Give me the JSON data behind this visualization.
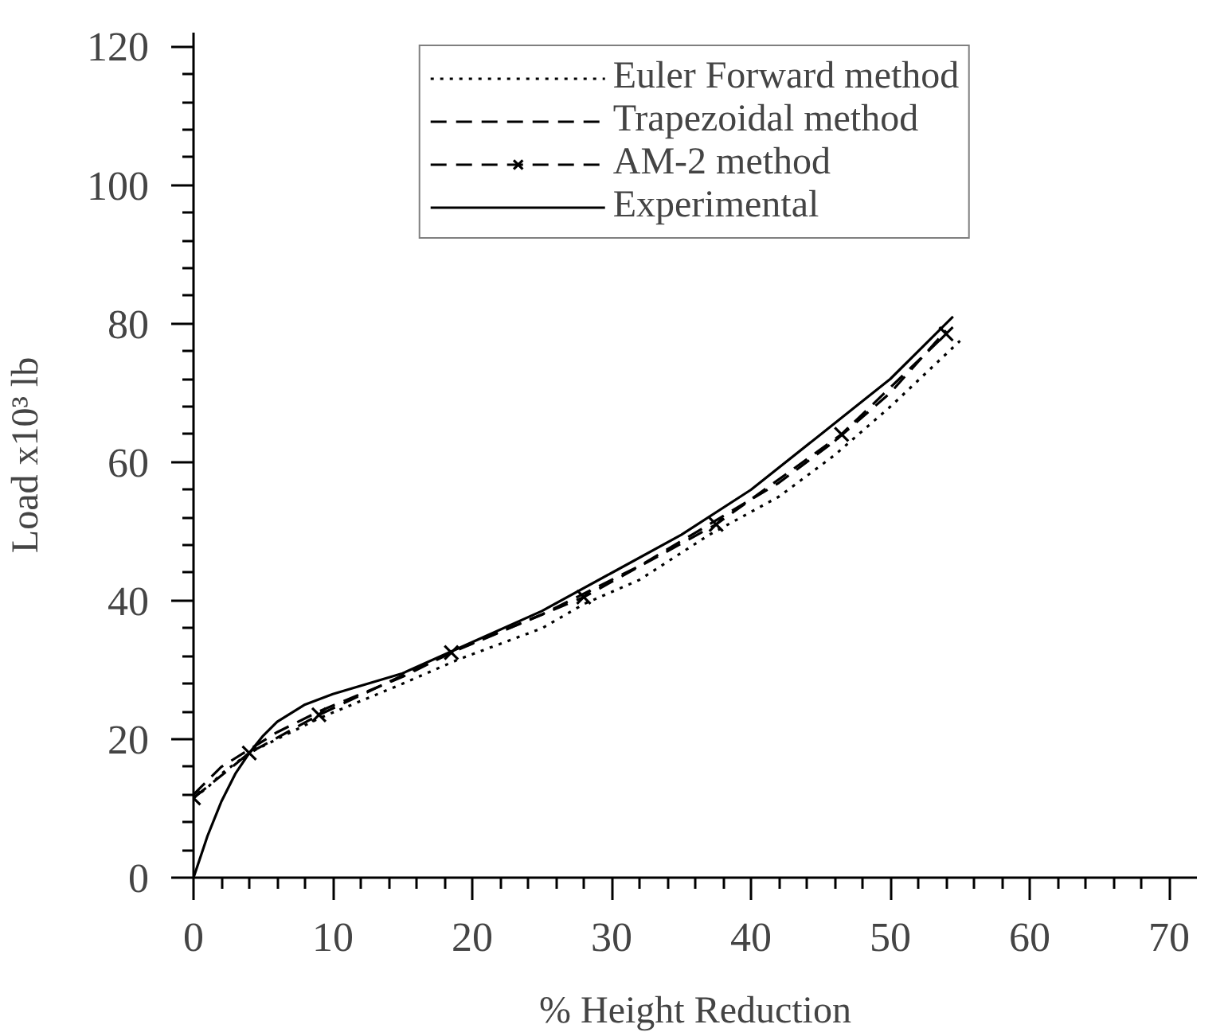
{
  "chart_data": {
    "type": "line",
    "xlabel": "% Height Reduction",
    "ylabel": "Load x10³ lb",
    "xlim": [
      0,
      72
    ],
    "ylim": [
      0,
      122
    ],
    "xticks": [
      0,
      {
        "value": 2,
        "label": null
      },
      {
        "value": 4,
        "label": null
      },
      {
        "value": 6,
        "label": null
      },
      {
        "value": 8,
        "label": null
      },
      10,
      {
        "value": 12,
        "label": null
      },
      {
        "value": 14,
        "label": null
      },
      {
        "value": 16,
        "label": null
      },
      {
        "value": 18,
        "label": null
      },
      20,
      {
        "value": 22,
        "label": null
      },
      {
        "value": 24,
        "label": null
      },
      {
        "value": 26,
        "label": null
      },
      {
        "value": 28,
        "label": null
      },
      30,
      {
        "value": 32,
        "label": null
      },
      {
        "value": 34,
        "label": null
      },
      {
        "value": 36,
        "label": null
      },
      {
        "value": 38,
        "label": null
      },
      40,
      {
        "value": 42,
        "label": null
      },
      {
        "value": 44,
        "label": null
      },
      {
        "value": 46,
        "label": null
      },
      {
        "value": 48,
        "label": null
      },
      50,
      {
        "value": 52,
        "label": null
      },
      {
        "value": 54,
        "label": null
      },
      {
        "value": 56,
        "label": null
      },
      {
        "value": 58,
        "label": null
      },
      60,
      {
        "value": 62,
        "label": null
      },
      {
        "value": 64,
        "label": null
      },
      {
        "value": 66,
        "label": null
      },
      {
        "value": 68,
        "label": null
      },
      70
    ],
    "yticks": [
      0,
      {
        "value": 4,
        "label": null
      },
      {
        "value": 8,
        "label": null
      },
      {
        "value": 12,
        "label": null
      },
      {
        "value": 16,
        "label": null
      },
      20,
      {
        "value": 24,
        "label": null
      },
      {
        "value": 28,
        "label": null
      },
      {
        "value": 32,
        "label": null
      },
      {
        "value": 36,
        "label": null
      },
      40,
      {
        "value": 44,
        "label": null
      },
      {
        "value": 48,
        "label": null
      },
      {
        "value": 52,
        "label": null
      },
      {
        "value": 56,
        "label": null
      },
      60,
      {
        "value": 64,
        "label": null
      },
      {
        "value": 68,
        "label": null
      },
      {
        "value": 72,
        "label": null
      },
      {
        "value": 76,
        "label": null
      },
      80,
      {
        "value": 84,
        "label": null
      },
      {
        "value": 88,
        "label": null
      },
      {
        "value": 92,
        "label": null
      },
      {
        "value": 96,
        "label": null
      },
      100,
      {
        "value": 104,
        "label": null
      },
      {
        "value": 108,
        "label": null
      },
      {
        "value": 112,
        "label": null
      },
      {
        "value": 116,
        "label": null
      },
      120
    ],
    "grid": false,
    "legend": "top",
    "series": [
      {
        "name": "Euler Forward method",
        "color": "#000000",
        "line_style": "dotted",
        "marker": "none",
        "x": [
          0,
          1,
          2,
          4,
          6,
          9,
          12,
          15,
          19,
          25,
          28,
          32,
          37,
          42,
          46,
          50,
          55
        ],
        "values": [
          11.5,
          13,
          15,
          18,
          20,
          23,
          25.5,
          28,
          31.5,
          36,
          39.5,
          43,
          49.5,
          55,
          61,
          68,
          77.5
        ]
      },
      {
        "name": "Trapezoidal method",
        "color": "#000000",
        "line_style": "dashed",
        "marker": "none",
        "x": [
          0,
          1,
          2,
          4,
          6,
          9,
          12,
          15,
          19,
          25,
          28,
          32,
          37,
          42,
          46,
          50,
          54
        ],
        "values": [
          12,
          14,
          16,
          18.5,
          21,
          24,
          26.5,
          29,
          33,
          38,
          41,
          45,
          51,
          57,
          63,
          70,
          79
        ]
      },
      {
        "name": "AM-2 method",
        "color": "#000000",
        "line_style": "dashed",
        "marker": "cross",
        "x": [
          0,
          4,
          9,
          18.5,
          28,
          37.5,
          46.5,
          54
        ],
        "values": [
          11.5,
          18,
          23.5,
          32.5,
          40.5,
          51,
          64,
          78.5
        ]
      },
      {
        "name": "Experimental",
        "color": "#000000",
        "line_style": "solid",
        "marker": "none",
        "x": [
          0,
          1,
          2,
          3,
          4,
          5,
          6,
          8,
          10,
          15,
          20,
          25,
          30,
          35,
          40,
          45,
          50,
          54.5
        ],
        "values": [
          0,
          6,
          11,
          15,
          18,
          20.5,
          22.5,
          25,
          26.5,
          29.5,
          34,
          38.5,
          44,
          49.5,
          56,
          64,
          72,
          81
        ]
      }
    ]
  }
}
